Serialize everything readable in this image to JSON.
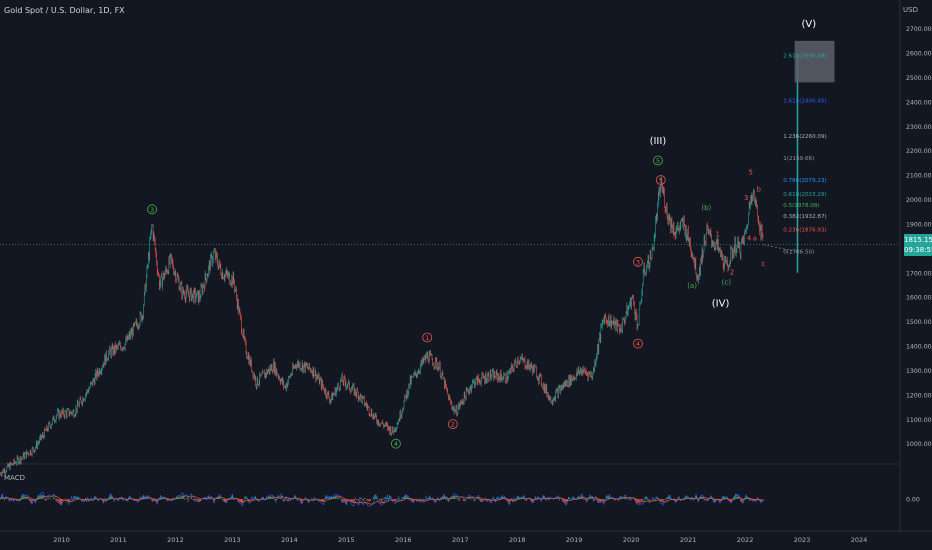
{
  "header": {
    "title": "Gold Spot / U.S. Dollar, 1D, FX",
    "currency": "USD"
  },
  "macd_label": "MACD",
  "current_price": {
    "value": "1815.15",
    "countdown": "09:38:55"
  },
  "colors": {
    "background": "#131722",
    "up": "#26a69a",
    "down": "#ef5350",
    "wave_green": "#4caf50",
    "wave_red": "#ef5350",
    "macd_line": "#2962ff",
    "signal_line": "#ff6d00"
  },
  "chart_data": {
    "type": "line",
    "title": "Gold Spot / U.S. Dollar, 1D, FX",
    "ylabel": "USD",
    "ylim": [
      900,
      2750
    ],
    "xlim": [
      2009.0,
      2024.8
    ],
    "y_ticks": [
      "2700.00",
      "2600.00",
      "2500.00",
      "2400.00",
      "2300.00",
      "2200.00",
      "2100.00",
      "2000.00",
      "1900.00",
      "1800.00",
      "1700.00",
      "1600.00",
      "1500.00",
      "1400.00",
      "1300.00",
      "1200.00",
      "1100.00",
      "1000.00"
    ],
    "x_ticks": [
      "2010",
      "2011",
      "2012",
      "2013",
      "2014",
      "2015",
      "2016",
      "2017",
      "2018",
      "2019",
      "2020",
      "2021",
      "2022",
      "2023",
      "2024"
    ],
    "series": [
      {
        "x": [
          2009.0,
          2009.3,
          2009.6,
          2010.0,
          2010.3,
          2010.6,
          2010.9,
          2011.2,
          2011.5,
          2011.67,
          2011.8,
          2012.0,
          2012.2,
          2012.5,
          2012.75,
          2012.9,
          2013.1,
          2013.3,
          2013.5,
          2013.8,
          2014.0,
          2014.2,
          2014.5,
          2014.8,
          2015.0,
          2015.3,
          2015.6,
          2015.9,
          2016.0,
          2016.2,
          2016.5,
          2016.7,
          2016.9,
          2017.0,
          2017.3,
          2017.6,
          2017.9,
          2018.1,
          2018.4,
          2018.67,
          2018.9,
          2019.2,
          2019.4,
          2019.6,
          2019.9,
          2020.1,
          2020.2,
          2020.3,
          2020.45,
          2020.6,
          2020.73,
          2020.85,
          2021.0,
          2021.15,
          2021.25,
          2021.4,
          2021.6,
          2021.75,
          2021.9,
          2022.0,
          2022.1,
          2022.2,
          2022.32,
          2022.4
        ],
        "y": [
          880,
          930,
          980,
          1120,
          1130,
          1240,
          1370,
          1410,
          1530,
          1900,
          1650,
          1750,
          1620,
          1600,
          1780,
          1700,
          1670,
          1400,
          1250,
          1320,
          1230,
          1330,
          1300,
          1180,
          1260,
          1200,
          1100,
          1050,
          1100,
          1250,
          1360,
          1320,
          1170,
          1130,
          1250,
          1280,
          1270,
          1350,
          1300,
          1180,
          1240,
          1300,
          1280,
          1520,
          1470,
          1600,
          1480,
          1700,
          1780,
          2070,
          1930,
          1870,
          1900,
          1790,
          1680,
          1870,
          1800,
          1720,
          1810,
          1800,
          1870,
          2050,
          1920,
          1815
        ]
      }
    ],
    "projection": {
      "x": [
        2022.4,
        2023.0,
        2023.0
      ],
      "y": [
        1815,
        1786.5,
        2590
      ]
    },
    "fib_levels": [
      {
        "label": "2.618(2590.48)",
        "price": 2590.48,
        "color": "#26a69a"
      },
      {
        "label": "1.618(2406.45)",
        "price": 2406.45,
        "color": "#2962ff"
      },
      {
        "label": "1.236(2260.09)",
        "price": 2260.09,
        "color": "#b2b5be"
      },
      {
        "label": "1(2169.66)",
        "price": 2169.66,
        "color": "#9598a1"
      },
      {
        "label": "0.786(2079.23)",
        "price": 2079.23,
        "color": "#2196f3"
      },
      {
        "label": "0.618(2023.29)",
        "price": 2023.29,
        "color": "#26a69a"
      },
      {
        "label": "0.5(1978.08)",
        "price": 1978.08,
        "color": "#4caf50"
      },
      {
        "label": "0.382(1932.87)",
        "price": 1932.87,
        "color": "#b2b5be"
      },
      {
        "label": "0.236(1876.93)",
        "price": 1876.93,
        "color": "#ef5350"
      },
      {
        "label": "0(1786.50)",
        "price": 1786.5,
        "color": "#9598a1"
      }
    ],
    "annotations": [
      {
        "text": "3",
        "x": 2011.67,
        "y": 1960,
        "color": "#4caf50",
        "circled": true
      },
      {
        "text": "4",
        "x": 2015.95,
        "y": 1000,
        "color": "#4caf50",
        "circled": true
      },
      {
        "text": "5",
        "x": 2020.55,
        "y": 2160,
        "color": "#4caf50",
        "circled": true
      },
      {
        "text": "(III)",
        "x": 2020.55,
        "y": 2240,
        "color": "#ffffff",
        "circled": false
      },
      {
        "text": "(IV)",
        "x": 2021.65,
        "y": 1575,
        "color": "#ffffff",
        "circled": false
      },
      {
        "text": "(V)",
        "x": 2023.2,
        "y": 2720,
        "color": "#ffffff",
        "circled": false
      },
      {
        "text": "1",
        "x": 2016.5,
        "y": 1435,
        "color": "#ef5350",
        "circled": true
      },
      {
        "text": "2",
        "x": 2016.95,
        "y": 1080,
        "color": "#ef5350",
        "circled": true
      },
      {
        "text": "3",
        "x": 2020.2,
        "y": 1745,
        "color": "#ef5350",
        "circled": true
      },
      {
        "text": "4",
        "x": 2020.2,
        "y": 1410,
        "color": "#ef5350",
        "circled": true
      },
      {
        "text": "5",
        "x": 2020.6,
        "y": 2080,
        "color": "#ef5350",
        "circled": true
      },
      {
        "text": "(a)",
        "x": 2021.15,
        "y": 1650,
        "color": "#4caf50",
        "circled": false
      },
      {
        "text": "(b)",
        "x": 2021.4,
        "y": 1970,
        "color": "#4caf50",
        "circled": false
      },
      {
        "text": "(c)",
        "x": 2021.75,
        "y": 1665,
        "color": "#4caf50",
        "circled": false
      },
      {
        "text": "1",
        "x": 2021.6,
        "y": 1860,
        "color": "#ef5350",
        "circled": false
      },
      {
        "text": "2",
        "x": 2021.85,
        "y": 1705,
        "color": "#ef5350",
        "circled": false
      },
      {
        "text": "3",
        "x": 2022.1,
        "y": 2010,
        "color": "#ef5350",
        "circled": false
      },
      {
        "text": "4",
        "x": 2022.15,
        "y": 1845,
        "color": "#ef5350",
        "circled": false
      },
      {
        "text": "5",
        "x": 2022.18,
        "y": 2115,
        "color": "#ef5350",
        "circled": false
      },
      {
        "text": "a",
        "x": 2022.25,
        "y": 1845,
        "color": "#ef5350",
        "circled": false
      },
      {
        "text": "b",
        "x": 2022.32,
        "y": 2045,
        "color": "#ef5350",
        "circled": false
      },
      {
        "text": "c",
        "x": 2022.4,
        "y": 1740,
        "color": "#ef5350",
        "circled": false
      }
    ],
    "macd": {
      "ylabel": "0.00",
      "grid": false
    }
  }
}
